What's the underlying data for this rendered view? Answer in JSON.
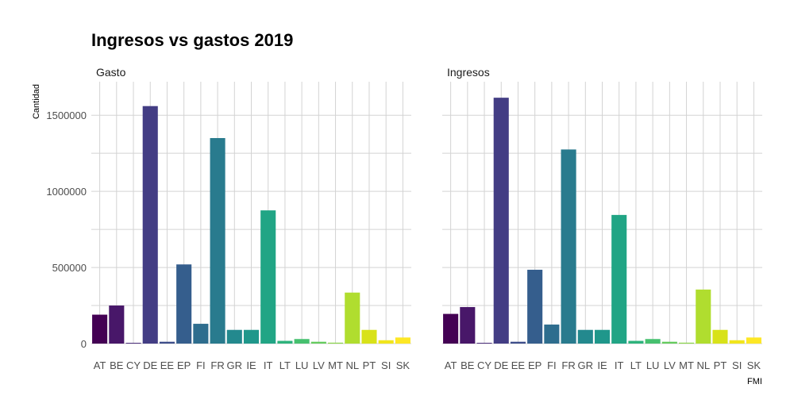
{
  "chart_data": {
    "type": "bar",
    "title": "Ingresos vs gastos 2019",
    "xlabel": "FMI",
    "ylabel": "Cantidad",
    "ylim": [
      0,
      1720000
    ],
    "y_ticks": [
      0,
      500000,
      1000000,
      1500000
    ],
    "y_tick_labels": [
      "0",
      "500000",
      "1000000",
      "1500000"
    ],
    "grid": true,
    "legend": "none",
    "categories": [
      "AT",
      "BE",
      "CY",
      "DE",
      "EE",
      "EP",
      "FI",
      "FR",
      "GR",
      "IE",
      "IT",
      "LT",
      "LU",
      "LV",
      "MT",
      "NL",
      "PT",
      "SI",
      "SK"
    ],
    "colors": [
      "#440154",
      "#481769",
      "#472A7A",
      "#433D84",
      "#3D4E8A",
      "#355E8D",
      "#2E6D8E",
      "#297B8E",
      "#23898E",
      "#1F978B",
      "#21A585",
      "#2EB37C",
      "#46C06F",
      "#65CB5E",
      "#89D548",
      "#B0DD2F",
      "#D8E219",
      "#F1E51D",
      "#FDE725"
    ],
    "panels": [
      {
        "label": "Gasto",
        "values": [
          190000,
          250000,
          5000,
          1560000,
          12000,
          520000,
          130000,
          1350000,
          90000,
          90000,
          875000,
          18000,
          30000,
          12000,
          6000,
          335000,
          90000,
          22000,
          40000
        ]
      },
      {
        "label": "Ingresos",
        "values": [
          195000,
          240000,
          5000,
          1615000,
          12000,
          485000,
          125000,
          1275000,
          90000,
          90000,
          845000,
          18000,
          30000,
          12000,
          6000,
          355000,
          90000,
          22000,
          40000
        ]
      }
    ]
  }
}
